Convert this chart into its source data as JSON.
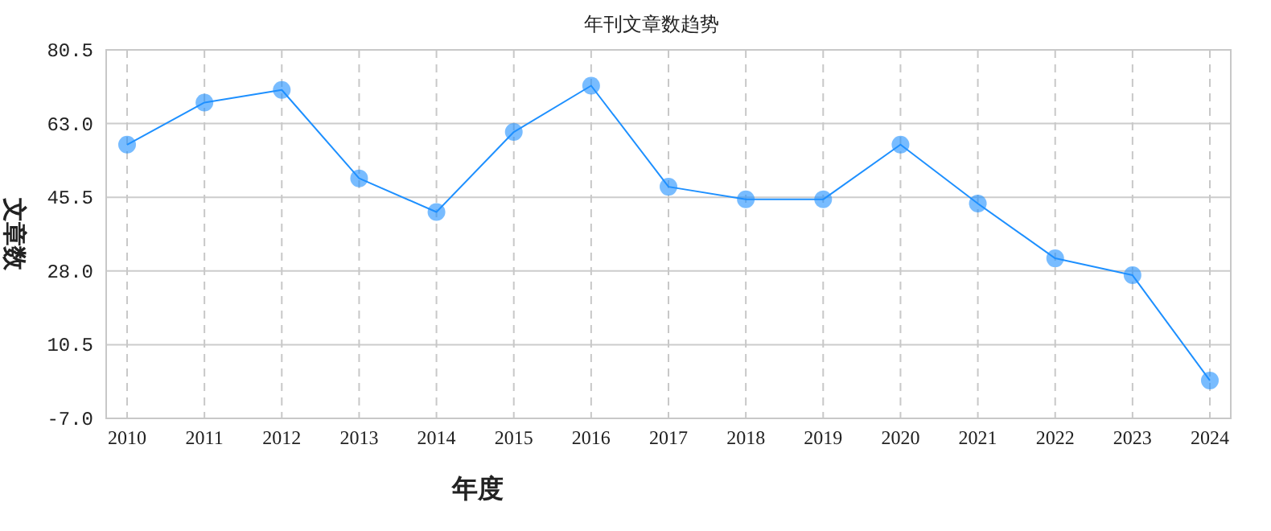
{
  "chart_data": {
    "type": "line",
    "title": "年刊文章数趋势",
    "xlabel": "年度",
    "ylabel": "文章数",
    "categories": [
      "2010",
      "2011",
      "2012",
      "2013",
      "2014",
      "2015",
      "2016",
      "2017",
      "2018",
      "2019",
      "2020",
      "2021",
      "2022",
      "2023",
      "2024"
    ],
    "series": [
      {
        "color": "#1e90ff",
        "values": [
          58,
          68,
          71,
          50,
          42,
          61,
          72,
          48,
          45,
          45,
          58,
          44,
          31,
          27,
          2
        ]
      }
    ],
    "ylim": [
      -7,
      80.5
    ],
    "yticks": [
      {
        "value": -7,
        "label": "-7.0"
      },
      10.5,
      {
        "value": 28,
        "label": "28.0"
      },
      45.5,
      {
        "value": 63,
        "label": "63.0"
      },
      80.5
    ],
    "grid": true,
    "marker": "circle",
    "line_style": "solid"
  }
}
